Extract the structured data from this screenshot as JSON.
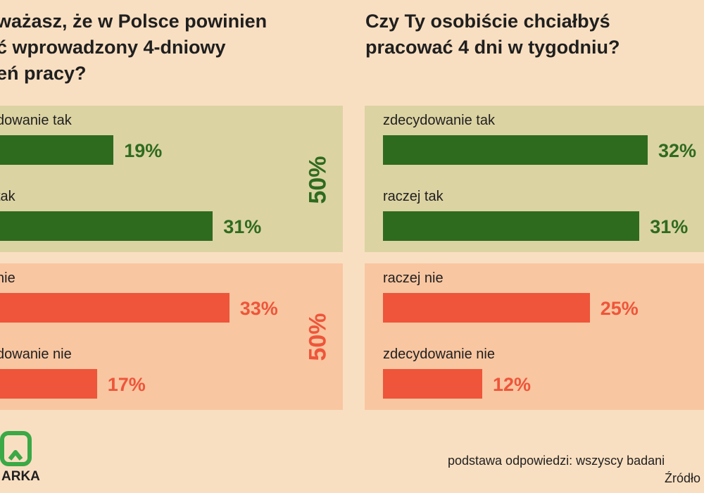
{
  "colors": {
    "background": "#f9dfc1",
    "yes_panel": "#dcd3a3",
    "no_panel": "#f8c6a1",
    "yes": "#2e6b1f",
    "no": "#ee553a",
    "logo": "#3aa946"
  },
  "chart_data": [
    {
      "type": "bar",
      "orientation": "horizontal",
      "title": "ważasz, że w Polsce powinien\nć wprowadzony 4-dniowy\neń pracy?",
      "categories": [
        "dowanie tak",
        "tak",
        "nie",
        "dowanie nie"
      ],
      "values": [
        19,
        31,
        33,
        17
      ],
      "value_labels": [
        "19%",
        "31%",
        "33%",
        "17%"
      ],
      "unit": "%",
      "xlim": [
        0,
        100
      ],
      "group_totals": [
        {
          "label": "50%",
          "categories": [
            0,
            1
          ]
        },
        {
          "label": "50%",
          "categories": [
            2,
            3
          ]
        }
      ]
    },
    {
      "type": "bar",
      "orientation": "horizontal",
      "title": "Czy Ty osobiście chciałbyś\npracować 4 dni w tygodniu?",
      "categories": [
        "zdecydowanie tak",
        "raczej tak",
        "raczej nie",
        "zdecydowanie nie"
      ],
      "values": [
        32,
        31,
        25,
        12
      ],
      "value_labels": [
        "32%",
        "31%",
        "25%",
        "12%"
      ],
      "unit": "%",
      "xlim": [
        0,
        100
      ]
    }
  ],
  "footer": {
    "basis": "podstawa odpowiedzi: wszyscy badani",
    "source": "Źródło",
    "logo_text": "ARKA"
  }
}
